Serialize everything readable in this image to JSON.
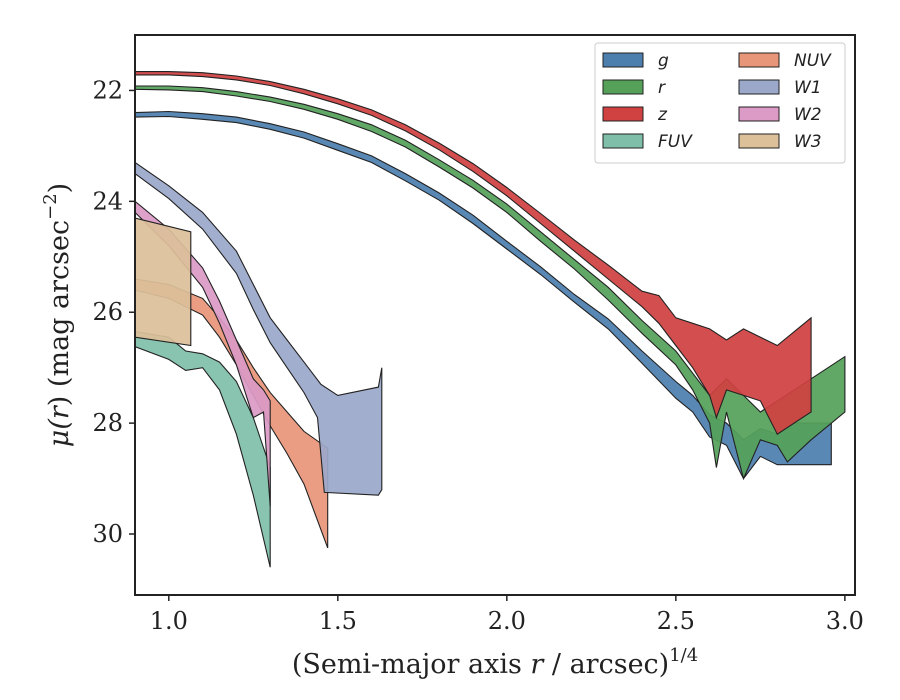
{
  "chart_data": {
    "type": "area",
    "xlabel_main": "(Semi-major axis ",
    "xlabel_var": "r",
    "xlabel_rest": " / arcsec)",
    "xlabel_sup": "1/4",
    "ylabel_main": "μ(",
    "ylabel_var": "r",
    "ylabel_rest": ") (mag arcsec",
    "ylabel_sup": "−2",
    "ylabel_close": ")",
    "xlim": [
      0.9,
      3.03
    ],
    "ylim": [
      31.1,
      21.0
    ],
    "xticks": [
      1.0,
      1.5,
      2.0,
      2.5,
      3.0
    ],
    "xtick_labels": [
      "1.0",
      "1.5",
      "2.0",
      "2.5",
      "3.0"
    ],
    "yticks": [
      22,
      24,
      26,
      28,
      30
    ],
    "ytick_labels": [
      "22",
      "24",
      "26",
      "28",
      "30"
    ],
    "grid": false,
    "legend": {
      "placement": "top-right",
      "columns": 2
    },
    "series": [
      {
        "name": "g",
        "color": "#4c7fae",
        "upper": [
          [
            0.9,
            22.4
          ],
          [
            1.0,
            22.38
          ],
          [
            1.1,
            22.42
          ],
          [
            1.2,
            22.48
          ],
          [
            1.3,
            22.6
          ],
          [
            1.4,
            22.75
          ],
          [
            1.5,
            22.96
          ],
          [
            1.6,
            23.18
          ],
          [
            1.7,
            23.5
          ],
          [
            1.8,
            23.85
          ],
          [
            1.9,
            24.25
          ],
          [
            2.0,
            24.72
          ],
          [
            2.1,
            25.18
          ],
          [
            2.2,
            25.68
          ],
          [
            2.3,
            26.12
          ],
          [
            2.4,
            26.7
          ],
          [
            2.5,
            27.25
          ],
          [
            2.55,
            27.5
          ],
          [
            2.6,
            27.85
          ],
          [
            2.65,
            28.0
          ],
          [
            2.7,
            28.3
          ],
          [
            2.75,
            28.1
          ],
          [
            2.8,
            28.2
          ],
          [
            2.85,
            28.0
          ],
          [
            2.9,
            28.0
          ],
          [
            2.96,
            28.0
          ]
        ],
        "lower": [
          [
            0.9,
            22.48
          ],
          [
            1.0,
            22.47
          ],
          [
            1.1,
            22.52
          ],
          [
            1.2,
            22.58
          ],
          [
            1.3,
            22.7
          ],
          [
            1.4,
            22.86
          ],
          [
            1.5,
            23.08
          ],
          [
            1.6,
            23.3
          ],
          [
            1.7,
            23.63
          ],
          [
            1.8,
            23.98
          ],
          [
            1.9,
            24.4
          ],
          [
            2.0,
            24.86
          ],
          [
            2.1,
            25.32
          ],
          [
            2.2,
            25.82
          ],
          [
            2.3,
            26.3
          ],
          [
            2.4,
            26.92
          ],
          [
            2.5,
            27.55
          ],
          [
            2.55,
            27.8
          ],
          [
            2.6,
            28.25
          ],
          [
            2.65,
            28.4
          ],
          [
            2.7,
            29.0
          ],
          [
            2.75,
            28.6
          ],
          [
            2.8,
            28.75
          ],
          [
            2.85,
            28.75
          ],
          [
            2.9,
            28.75
          ],
          [
            2.96,
            28.75
          ]
        ]
      },
      {
        "name": "r",
        "color": "#55a15a",
        "upper": [
          [
            0.9,
            21.92
          ],
          [
            1.0,
            21.92
          ],
          [
            1.1,
            21.95
          ],
          [
            1.2,
            22.02
          ],
          [
            1.3,
            22.12
          ],
          [
            1.4,
            22.25
          ],
          [
            1.5,
            22.42
          ],
          [
            1.6,
            22.62
          ],
          [
            1.7,
            22.9
          ],
          [
            1.8,
            23.25
          ],
          [
            1.9,
            23.62
          ],
          [
            2.0,
            24.05
          ],
          [
            2.1,
            24.55
          ],
          [
            2.2,
            25.05
          ],
          [
            2.3,
            25.55
          ],
          [
            2.4,
            26.15
          ],
          [
            2.5,
            26.7
          ],
          [
            2.55,
            27.1
          ],
          [
            2.6,
            27.5
          ],
          [
            2.65,
            27.2
          ],
          [
            2.7,
            27.5
          ],
          [
            2.75,
            27.8
          ],
          [
            2.8,
            27.6
          ],
          [
            2.85,
            27.4
          ],
          [
            2.9,
            27.2
          ],
          [
            3.0,
            26.8
          ]
        ],
        "lower": [
          [
            0.9,
            21.98
          ],
          [
            1.0,
            21.99
          ],
          [
            1.1,
            22.02
          ],
          [
            1.2,
            22.1
          ],
          [
            1.3,
            22.2
          ],
          [
            1.4,
            22.34
          ],
          [
            1.5,
            22.52
          ],
          [
            1.6,
            22.74
          ],
          [
            1.7,
            23.02
          ],
          [
            1.8,
            23.38
          ],
          [
            1.9,
            23.76
          ],
          [
            2.0,
            24.2
          ],
          [
            2.1,
            24.72
          ],
          [
            2.2,
            25.22
          ],
          [
            2.3,
            25.78
          ],
          [
            2.4,
            26.38
          ],
          [
            2.5,
            26.95
          ],
          [
            2.55,
            27.4
          ],
          [
            2.6,
            28.0
          ],
          [
            2.62,
            28.8
          ],
          [
            2.65,
            27.8
          ],
          [
            2.7,
            29.0
          ],
          [
            2.75,
            28.3
          ],
          [
            2.8,
            28.4
          ],
          [
            2.83,
            28.7
          ],
          [
            2.9,
            28.3
          ],
          [
            3.0,
            27.8
          ]
        ]
      },
      {
        "name": "z",
        "color": "#d04141",
        "upper": [
          [
            0.9,
            21.66
          ],
          [
            1.0,
            21.66
          ],
          [
            1.1,
            21.68
          ],
          [
            1.2,
            21.74
          ],
          [
            1.3,
            21.84
          ],
          [
            1.4,
            21.98
          ],
          [
            1.5,
            22.15
          ],
          [
            1.6,
            22.35
          ],
          [
            1.7,
            22.62
          ],
          [
            1.8,
            22.95
          ],
          [
            1.9,
            23.32
          ],
          [
            2.0,
            23.75
          ],
          [
            2.1,
            24.22
          ],
          [
            2.2,
            24.7
          ],
          [
            2.3,
            25.15
          ],
          [
            2.4,
            25.62
          ],
          [
            2.45,
            25.7
          ],
          [
            2.5,
            26.1
          ],
          [
            2.55,
            26.2
          ],
          [
            2.6,
            26.3
          ],
          [
            2.65,
            26.5
          ],
          [
            2.7,
            26.3
          ],
          [
            2.8,
            26.6
          ],
          [
            2.9,
            26.1
          ]
        ],
        "lower": [
          [
            0.9,
            21.72
          ],
          [
            1.0,
            21.72
          ],
          [
            1.1,
            21.75
          ],
          [
            1.2,
            21.81
          ],
          [
            1.3,
            21.91
          ],
          [
            1.4,
            22.06
          ],
          [
            1.5,
            22.24
          ],
          [
            1.6,
            22.45
          ],
          [
            1.7,
            22.73
          ],
          [
            1.8,
            23.07
          ],
          [
            1.9,
            23.46
          ],
          [
            2.0,
            23.9
          ],
          [
            2.1,
            24.4
          ],
          [
            2.2,
            24.9
          ],
          [
            2.3,
            25.4
          ],
          [
            2.4,
            25.9
          ],
          [
            2.45,
            26.2
          ],
          [
            2.5,
            26.6
          ],
          [
            2.55,
            27.0
          ],
          [
            2.6,
            27.5
          ],
          [
            2.62,
            27.9
          ],
          [
            2.65,
            27.4
          ],
          [
            2.7,
            27.5
          ],
          [
            2.75,
            27.6
          ],
          [
            2.8,
            28.2
          ],
          [
            2.85,
            28.0
          ],
          [
            2.9,
            27.8
          ]
        ]
      },
      {
        "name": "FUV",
        "color": "#7fbfa9",
        "upper": [
          [
            0.9,
            26.35
          ],
          [
            1.0,
            26.45
          ],
          [
            1.05,
            26.7
          ],
          [
            1.1,
            26.75
          ],
          [
            1.15,
            26.9
          ],
          [
            1.2,
            27.25
          ],
          [
            1.25,
            27.9
          ],
          [
            1.3,
            28.8
          ]
        ],
        "lower": [
          [
            0.9,
            26.62
          ],
          [
            1.0,
            26.85
          ],
          [
            1.05,
            27.05
          ],
          [
            1.1,
            27.0
          ],
          [
            1.15,
            27.4
          ],
          [
            1.2,
            28.2
          ],
          [
            1.25,
            29.3
          ],
          [
            1.3,
            30.6
          ]
        ]
      },
      {
        "name": "NUV",
        "color": "#e8967a",
        "upper": [
          [
            0.9,
            25.4
          ],
          [
            1.0,
            25.5
          ],
          [
            1.1,
            25.75
          ],
          [
            1.15,
            26.1
          ],
          [
            1.2,
            26.5
          ],
          [
            1.25,
            27.0
          ],
          [
            1.3,
            27.45
          ],
          [
            1.35,
            27.8
          ],
          [
            1.4,
            28.15
          ],
          [
            1.47,
            28.45
          ]
        ],
        "lower": [
          [
            0.9,
            25.6
          ],
          [
            1.0,
            25.75
          ],
          [
            1.1,
            26.05
          ],
          [
            1.15,
            26.45
          ],
          [
            1.2,
            26.95
          ],
          [
            1.25,
            27.5
          ],
          [
            1.3,
            28.05
          ],
          [
            1.35,
            28.55
          ],
          [
            1.4,
            29.1
          ],
          [
            1.47,
            30.25
          ]
        ]
      },
      {
        "name": "W1",
        "color": "#9ba8c9",
        "upper": [
          [
            0.9,
            23.3
          ],
          [
            1.0,
            23.72
          ],
          [
            1.1,
            24.2
          ],
          [
            1.2,
            24.9
          ],
          [
            1.25,
            25.5
          ],
          [
            1.3,
            26.1
          ],
          [
            1.35,
            26.5
          ],
          [
            1.4,
            26.9
          ],
          [
            1.45,
            27.3
          ],
          [
            1.5,
            27.5
          ],
          [
            1.62,
            27.35
          ],
          [
            1.63,
            27.0
          ]
        ],
        "lower": [
          [
            0.9,
            23.5
          ],
          [
            1.0,
            23.95
          ],
          [
            1.1,
            24.5
          ],
          [
            1.2,
            25.3
          ],
          [
            1.25,
            25.95
          ],
          [
            1.3,
            26.55
          ],
          [
            1.35,
            27.0
          ],
          [
            1.4,
            27.45
          ],
          [
            1.44,
            27.9
          ],
          [
            1.46,
            29.25
          ],
          [
            1.62,
            29.3
          ],
          [
            1.63,
            29.2
          ]
        ]
      },
      {
        "name": "W2",
        "color": "#dc9ac6",
        "upper": [
          [
            0.9,
            24.0
          ],
          [
            1.0,
            24.5
          ],
          [
            1.1,
            25.2
          ],
          [
            1.15,
            25.8
          ],
          [
            1.2,
            26.5
          ],
          [
            1.25,
            27.2
          ],
          [
            1.28,
            27.4
          ],
          [
            1.3,
            27.6
          ]
        ],
        "lower": [
          [
            0.9,
            24.2
          ],
          [
            1.0,
            24.8
          ],
          [
            1.1,
            25.55
          ],
          [
            1.15,
            26.2
          ],
          [
            1.2,
            26.95
          ],
          [
            1.25,
            27.9
          ],
          [
            1.28,
            27.8
          ],
          [
            1.3,
            29.5
          ]
        ]
      },
      {
        "name": "W3",
        "color": "#dcc09a",
        "upper": [
          [
            0.9,
            24.3
          ],
          [
            1.065,
            24.55
          ]
        ],
        "lower": [
          [
            0.9,
            26.45
          ],
          [
            1.065,
            26.6
          ]
        ]
      }
    ]
  }
}
